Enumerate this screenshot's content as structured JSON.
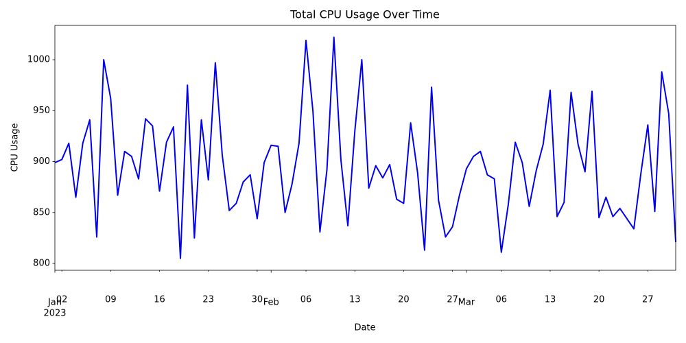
{
  "chart_data": {
    "type": "line",
    "title": "Total CPU Usage Over Time",
    "xlabel": "Date",
    "ylabel": "CPU Usage",
    "color": "#0000ee",
    "x": [
      "2023-01-01",
      "2023-01-02",
      "2023-01-03",
      "2023-01-04",
      "2023-01-05",
      "2023-01-06",
      "2023-01-07",
      "2023-01-08",
      "2023-01-09",
      "2023-01-10",
      "2023-01-11",
      "2023-01-12",
      "2023-01-13",
      "2023-01-14",
      "2023-01-15",
      "2023-01-16",
      "2023-01-17",
      "2023-01-18",
      "2023-01-19",
      "2023-01-20",
      "2023-01-21",
      "2023-01-22",
      "2023-01-23",
      "2023-01-24",
      "2023-01-25",
      "2023-01-26",
      "2023-01-27",
      "2023-01-28",
      "2023-01-29",
      "2023-01-30",
      "2023-01-31",
      "2023-02-01",
      "2023-02-02",
      "2023-02-03",
      "2023-02-04",
      "2023-02-05",
      "2023-02-06",
      "2023-02-07",
      "2023-02-08",
      "2023-02-09",
      "2023-02-10",
      "2023-02-11",
      "2023-02-12",
      "2023-02-13",
      "2023-02-14",
      "2023-02-15",
      "2023-02-16",
      "2023-02-17",
      "2023-02-18",
      "2023-02-19",
      "2023-02-20",
      "2023-02-21",
      "2023-02-22",
      "2023-02-23",
      "2023-02-24",
      "2023-02-25",
      "2023-02-26",
      "2023-02-27",
      "2023-02-28",
      "2023-03-01",
      "2023-03-02",
      "2023-03-03",
      "2023-03-04",
      "2023-03-05",
      "2023-03-06",
      "2023-03-07",
      "2023-03-08",
      "2023-03-09",
      "2023-03-10",
      "2023-03-11",
      "2023-03-12",
      "2023-03-13",
      "2023-03-14",
      "2023-03-15",
      "2023-03-16",
      "2023-03-17",
      "2023-03-18",
      "2023-03-19",
      "2023-03-20",
      "2023-03-21",
      "2023-03-22",
      "2023-03-23",
      "2023-03-24",
      "2023-03-25",
      "2023-03-26",
      "2023-03-27",
      "2023-03-28",
      "2023-03-29",
      "2023-03-30",
      "2023-03-31"
    ],
    "values": [
      899,
      902,
      918,
      865,
      918,
      941,
      826,
      1000,
      962,
      867,
      910,
      905,
      883,
      942,
      935,
      871,
      919,
      934,
      805,
      975,
      825,
      941,
      882,
      997,
      906,
      852,
      859,
      880,
      887,
      844,
      899,
      916,
      915,
      850,
      878,
      918,
      1019,
      949,
      831,
      892,
      1022,
      902,
      837,
      930,
      1000,
      874,
      896,
      884,
      897,
      863,
      859,
      938,
      889,
      813,
      973,
      862,
      826,
      836,
      867,
      893,
      905,
      910,
      887,
      883,
      811,
      858,
      919,
      899,
      856,
      891,
      917,
      970,
      846,
      860,
      968,
      917,
      890,
      969,
      845,
      865,
      846,
      854,
      844,
      834,
      888,
      936,
      851,
      988,
      947,
      821
    ],
    "xlim": [
      "2023-01-01",
      "2023-03-31"
    ],
    "xticks": [
      {
        "value": "2023-01-02",
        "label": "02"
      },
      {
        "value": "2023-01-09",
        "label": "09"
      },
      {
        "value": "2023-01-16",
        "label": "16"
      },
      {
        "value": "2023-01-23",
        "label": "23"
      },
      {
        "value": "2023-01-30",
        "label": "30"
      },
      {
        "value": "2023-02-06",
        "label": "06"
      },
      {
        "value": "2023-02-13",
        "label": "13"
      },
      {
        "value": "2023-02-20",
        "label": "20"
      },
      {
        "value": "2023-02-27",
        "label": "27"
      },
      {
        "value": "2023-03-06",
        "label": "06"
      },
      {
        "value": "2023-03-13",
        "label": "13"
      },
      {
        "value": "2023-03-20",
        "label": "20"
      },
      {
        "value": "2023-03-27",
        "label": "27"
      }
    ],
    "xticks_major": [
      {
        "value": "2023-01-01",
        "label": "Jan",
        "year": "2023"
      },
      {
        "value": "2023-02-01",
        "label": "Feb"
      },
      {
        "value": "2023-03-01",
        "label": "Mar"
      }
    ],
    "ylim": [
      793.3,
      1033.7
    ],
    "yticks": [
      800,
      850,
      900,
      950,
      1000
    ]
  }
}
